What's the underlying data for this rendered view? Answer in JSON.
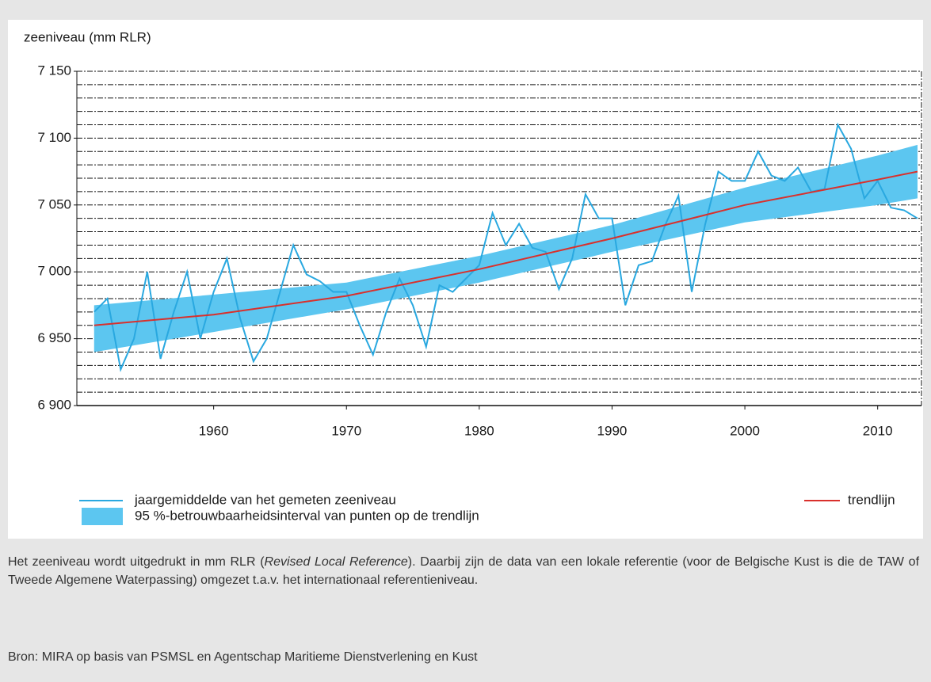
{
  "chart_data": {
    "type": "line",
    "ylabel": "zeeniveau (mm RLR)",
    "xlim": [
      1949.7,
      2013.3
    ],
    "ylim": [
      6900,
      7150
    ],
    "xticks": [
      1960,
      1970,
      1980,
      1990,
      2000,
      2010
    ],
    "yticks": [
      {
        "value": 6900,
        "label": "6 900"
      },
      {
        "value": 6950,
        "label": "6 950"
      },
      {
        "value": 7000,
        "label": "7 000"
      },
      {
        "value": 7050,
        "label": "7 050"
      },
      {
        "value": 7100,
        "label": "7 100"
      },
      {
        "value": 7150,
        "label": "7 150"
      }
    ],
    "ygrid": [
      6910,
      6920,
      6930,
      6940,
      6950,
      6960,
      6970,
      6980,
      6990,
      7000,
      7010,
      7020,
      7030,
      7040,
      7050,
      7060,
      7070,
      7080,
      7090,
      7100,
      7110,
      7120,
      7130,
      7140,
      7150
    ],
    "grid": true,
    "series": [
      {
        "name": "jaargemiddelde van het gemeten zeeniveau",
        "color": "#29a8e0",
        "x": [
          1951,
          1952,
          1953,
          1954,
          1955,
          1956,
          1957,
          1958,
          1959,
          1960,
          1961,
          1962,
          1963,
          1964,
          1965,
          1966,
          1967,
          1968,
          1969,
          1970,
          1971,
          1972,
          1973,
          1974,
          1975,
          1976,
          1977,
          1978,
          1979,
          1980,
          1981,
          1982,
          1983,
          1984,
          1985,
          1986,
          1987,
          1988,
          1989,
          1990,
          1991,
          1992,
          1993,
          1994,
          1995,
          1996,
          1997,
          1998,
          1999,
          2000,
          2001,
          2002,
          2003,
          2004,
          2005,
          2006,
          2007,
          2008,
          2009,
          2010,
          2011,
          2012,
          2013
        ],
        "values": [
          6970,
          6980,
          6927,
          6950,
          7000,
          6935,
          6970,
          7000,
          6950,
          6985,
          7010,
          6965,
          6933,
          6950,
          6985,
          7020,
          6998,
          6993,
          6985,
          6985,
          6960,
          6938,
          6970,
          6995,
          6975,
          6944,
          6990,
          6985,
          6995,
          7005,
          7044,
          7020,
          7036,
          7018,
          7015,
          6987,
          7010,
          7058,
          7040,
          7040,
          6975,
          7005,
          7008,
          7035,
          7057,
          6985,
          7035,
          7075,
          7068,
          7068,
          7090,
          7072,
          7068,
          7078,
          7060,
          7062,
          7110,
          7092,
          7055,
          7068,
          7048,
          7046,
          7040
        ]
      },
      {
        "name": "trendlijn",
        "color": "#d9302c",
        "x": [
          1951,
          1960,
          1970,
          1980,
          1990,
          2000,
          2010,
          2013
        ],
        "values": [
          6960,
          6968,
          6982,
          7002,
          7025,
          7050,
          7069,
          7075
        ]
      },
      {
        "name": "95 %-betrouwbaarheidsinterval van punten op de trendlijn",
        "color": "#5cc6f0",
        "x": [
          1951,
          1960,
          1970,
          1980,
          1990,
          2000,
          2010,
          2013
        ],
        "lower": [
          6940,
          6955,
          6972,
          6992,
          7015,
          7037,
          7050,
          7055
        ],
        "upper": [
          6975,
          6983,
          6992,
          7012,
          7035,
          7063,
          7087,
          7095
        ]
      }
    ]
  },
  "caption": {
    "note": [
      "Het zeeniveau wordt uitgedrukt in mm RLR (",
      "Revised Local Reference",
      "). Daarbij zijn de data van een lokale referentie (voor de Belgische Kust is die de TAW of Tweede Algemene Waterpassing) omgezet t.a.v. het internationaal referentieniveau."
    ],
    "source": "Bron: MIRA op basis van PSMSL en Agentschap Maritieme Dienstverlening en Kust"
  }
}
